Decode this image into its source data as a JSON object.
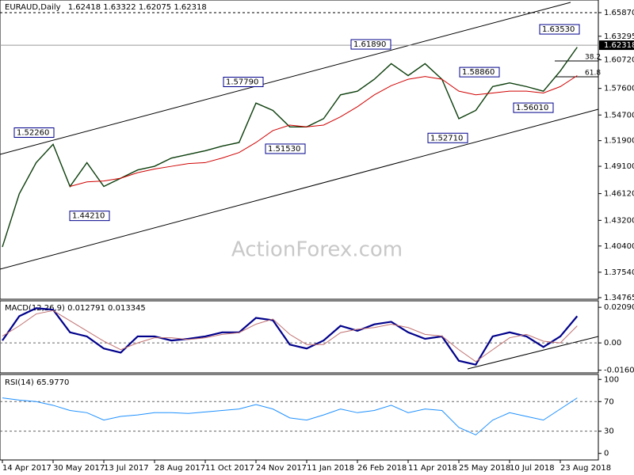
{
  "header": {
    "symbol": "EURAUD,Daily",
    "ohlc": [
      1.62418,
      1.63322,
      1.62075,
      1.62318
    ]
  },
  "chart_data": [
    {
      "type": "line",
      "watermark": "ActionForex.com",
      "categories": [
        "14 Apr 2017",
        null,
        null,
        "30 May 2017",
        null,
        null,
        "13 Jul 2017",
        null,
        null,
        "28 Aug 2017",
        null,
        null,
        "11 Oct 2017",
        null,
        null,
        "24 Nov 2017",
        null,
        null,
        "11 Jan 2018",
        null,
        null,
        "26 Feb 2018",
        null,
        null,
        "11 Apr 2018",
        null,
        null,
        "25 May 2018",
        null,
        null,
        "10 Jul 2018",
        null,
        null,
        "23 Aug 2018",
        null
      ],
      "series": [
        {
          "color": "#0b3d0b",
          "values": [
            1.403,
            1.461,
            1.495,
            1.515,
            1.469,
            1.495,
            1.469,
            1.478,
            1.487,
            1.491,
            1.5,
            1.504,
            1.508,
            1.513,
            1.517,
            1.56,
            1.552,
            1.534,
            1.534,
            1.543,
            1.569,
            1.573,
            1.586,
            1.603,
            1.59,
            1.603,
            1.586,
            1.543,
            1.552,
            1.578,
            1.582,
            1.578,
            1.573,
            1.595,
            1.621
          ]
        },
        {
          "color": "#d00000",
          "values": [
            null,
            null,
            null,
            null,
            1.469,
            1.474,
            1.475,
            1.478,
            1.484,
            1.488,
            1.491,
            1.494,
            1.495,
            1.5,
            1.506,
            1.517,
            1.53,
            1.536,
            1.534,
            1.536,
            1.545,
            1.556,
            1.569,
            1.579,
            1.586,
            1.589,
            1.586,
            1.573,
            1.569,
            1.571,
            1.573,
            1.573,
            1.571,
            1.578,
            1.59
          ]
        }
      ],
      "ylim": [
        1.3459,
        1.6725
      ],
      "yticks": [
        {
          "value": 1.6587,
          "label": "1.65870"
        },
        1.63295,
        {
          "value": 1.6072,
          "label": "1.60720"
        },
        {
          "value": 1.576,
          "label": "1.57600"
        },
        {
          "value": 1.547,
          "label": "1.54700"
        },
        {
          "value": 1.519,
          "label": "1.51900"
        },
        {
          "value": 1.491,
          "label": "1.49100"
        },
        {
          "value": 1.4612,
          "label": "1.46120"
        },
        {
          "value": 1.432,
          "label": "1.43200"
        },
        {
          "value": 1.404,
          "label": "1.40400"
        },
        {
          "value": 1.3754,
          "label": "1.37540"
        },
        1.34765
      ],
      "last_price": 1.62318,
      "annotations": [
        {
          "value": 1.5226,
          "label": "1.52260"
        },
        {
          "value": 1.4421,
          "label": "1.44210"
        },
        {
          "value": 1.5779,
          "label": "1.57790"
        },
        {
          "value": 1.5153,
          "label": "1.51530"
        },
        {
          "value": 1.6189,
          "label": "1.61890"
        },
        {
          "value": 1.5271,
          "label": "1.52710"
        },
        {
          "value": 1.5886,
          "label": "1.58860"
        },
        {
          "value": 1.5601,
          "label": "1.56010"
        },
        {
          "value": 1.6353,
          "label": "1.63530"
        }
      ],
      "fib_levels": [
        38.2,
        61.8
      ]
    },
    {
      "type": "line",
      "title": "MACD(12,26,9)",
      "readings": [
        0.012791,
        0.013345
      ],
      "series": [
        {
          "color": "#00008b",
          "values": [
            0.0014,
            0.0157,
            0.0204,
            0.0195,
            0.0062,
            0.0038,
            -0.0033,
            -0.0057,
            0.0038,
            0.0038,
            0.0014,
            0.0024,
            0.0038,
            0.0062,
            0.0062,
            0.0147,
            0.0133,
            -0.001,
            -0.0033,
            0.0014,
            0.01,
            0.0071,
            0.0109,
            0.0124,
            0.0062,
            0.0024,
            0.0038,
            -0.0105,
            -0.0128,
            0.0038,
            0.0062,
            0.0038,
            -0.0024,
            0.0038,
            0.0157
          ]
        },
        {
          "color": "#c07070",
          "values": [
            0.004,
            0.01,
            0.017,
            0.019,
            0.013,
            0.007,
            0.001,
            -0.004,
            0,
            0.003,
            0.003,
            0.002,
            0.003,
            0.005,
            0.006,
            0.011,
            0.014,
            0.005,
            -0.001,
            -0.001,
            0.006,
            0.008,
            0.009,
            0.011,
            0.009,
            0.005,
            0.004,
            -0.004,
            -0.011,
            -0.004,
            0.003,
            0.005,
            0.001,
            0,
            0.01
          ]
        }
      ],
      "ylim": [
        -0.0176,
        0.0247
      ],
      "yticks": [
        0.020904,
        {
          "value": 0,
          "label": "0.00"
        },
        -0.016023
      ]
    },
    {
      "type": "line",
      "title": "RSI(14)",
      "reading": 65.977,
      "reading_label": "65.9770",
      "series": [
        {
          "color": "#1e90ff",
          "values": [
            75,
            72,
            70,
            65,
            58,
            55,
            45,
            50,
            52,
            55,
            55,
            54,
            56,
            58,
            60,
            66,
            60,
            48,
            45,
            52,
            60,
            55,
            58,
            65,
            55,
            60,
            58,
            35,
            25,
            45,
            55,
            50,
            45,
            60,
            75
          ]
        }
      ],
      "ylim": [
        -8.9,
        106.7
      ],
      "yticks": [
        100,
        70,
        30,
        0
      ]
    }
  ]
}
